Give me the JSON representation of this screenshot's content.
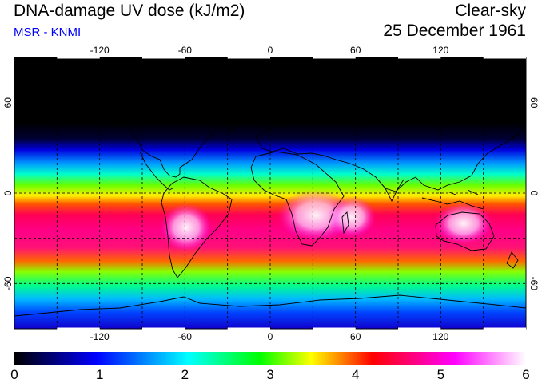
{
  "header": {
    "title": "DNA-damage UV dose (kJ/m2)",
    "subtitle": "MSR - KNMI",
    "condition": "Clear-sky",
    "date": "25 December 1961"
  },
  "map": {
    "projection": "equirectangular",
    "lon_range": [
      -180,
      180
    ],
    "lat_range": [
      -90,
      90
    ],
    "lon_tick_labels": [
      "-120",
      "-60",
      "0",
      "60",
      "120"
    ],
    "lon_tick_values": [
      -120,
      -60,
      0,
      60,
      120
    ],
    "lat_tick_labels": [
      "60",
      "0",
      "-60"
    ],
    "lat_tick_values": [
      60,
      0,
      -60
    ],
    "grid": "dashed, every 30 degrees"
  },
  "colorbar": {
    "labels": [
      "0",
      "1",
      "2",
      "3",
      "4",
      "5",
      "6"
    ],
    "values": [
      0,
      1,
      2,
      3,
      4,
      5,
      6
    ],
    "unit": "kJ/m2",
    "colors": [
      "#000000",
      "#0000ff",
      "#00ffff",
      "#00ff00",
      "#ffff00",
      "#ff0000",
      "#ff00ff",
      "#ffffff"
    ]
  }
}
